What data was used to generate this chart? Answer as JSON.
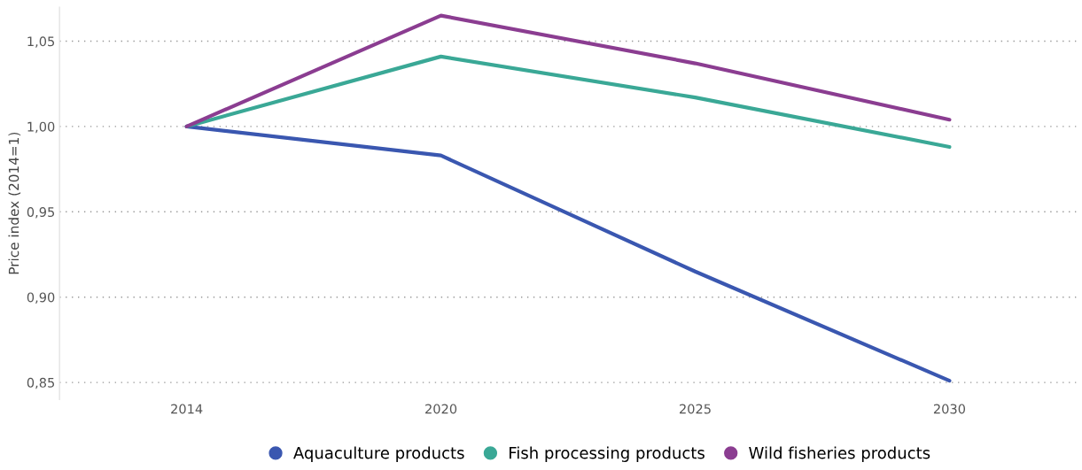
{
  "chart_data": {
    "type": "line",
    "ylabel": "Price index (2014=1)",
    "categories": [
      "2014",
      "2020",
      "2025",
      "2030"
    ],
    "series": [
      {
        "name": "Aquaculture products",
        "color": "#3a57b0",
        "values": [
          1.0,
          0.983,
          0.915,
          0.851
        ]
      },
      {
        "name": "Fish processing products",
        "color": "#3aa896",
        "values": [
          1.0,
          1.041,
          1.017,
          0.988
        ]
      },
      {
        "name": "Wild fisheries products",
        "color": "#8b3d91",
        "values": [
          1.0,
          1.065,
          1.037,
          1.004
        ]
      }
    ],
    "ylim": [
      0.84,
      1.07
    ],
    "yticks": [
      {
        "value": 0.85,
        "label": "0,85"
      },
      {
        "value": 0.9,
        "label": "0,90"
      },
      {
        "value": 0.95,
        "label": "0,95"
      },
      {
        "value": 1.0,
        "label": "1,00"
      },
      {
        "value": 1.05,
        "label": "1,05"
      }
    ],
    "grid": "y",
    "legend": "bottom",
    "marker": "none",
    "line_style": "solid"
  }
}
